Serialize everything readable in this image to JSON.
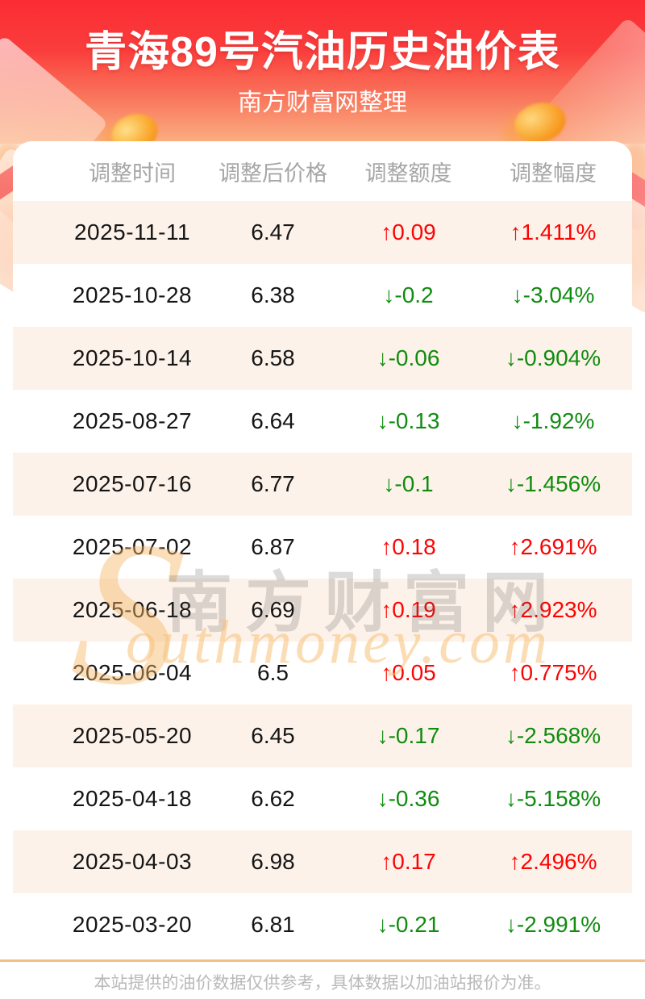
{
  "page": {
    "title": "青海89号汽油历史油价表",
    "subtitle": "南方财富网整理",
    "footer_note": "本站提供的油价数据仅供参考，具体数据以加油站报价为准。"
  },
  "watermark": {
    "initial": "S",
    "cn": "南方财富网",
    "en": "outhmoney.com"
  },
  "colors": {
    "up": "#fb0404",
    "down": "#108c10",
    "header_text": "#a6a6a6",
    "row_alt_bg": "#fdf2e9",
    "hero_red_top": "#fb2c33",
    "hero_red_bottom": "#fbb083",
    "footer_rule": "#f3bf82"
  },
  "chart_data": {
    "type": "table",
    "title": "青海89号汽油历史油价表",
    "columns": [
      "调整时间",
      "调整后价格",
      "调整额度",
      "调整幅度"
    ],
    "rows": [
      {
        "date": "2025-11-11",
        "price": "6.47",
        "change": "↑0.09",
        "pct": "↑1.411%",
        "dir": "up"
      },
      {
        "date": "2025-10-28",
        "price": "6.38",
        "change": "↓-0.2",
        "pct": "↓-3.04%",
        "dir": "down"
      },
      {
        "date": "2025-10-14",
        "price": "6.58",
        "change": "↓-0.06",
        "pct": "↓-0.904%",
        "dir": "down"
      },
      {
        "date": "2025-08-27",
        "price": "6.64",
        "change": "↓-0.13",
        "pct": "↓-1.92%",
        "dir": "down"
      },
      {
        "date": "2025-07-16",
        "price": "6.77",
        "change": "↓-0.1",
        "pct": "↓-1.456%",
        "dir": "down"
      },
      {
        "date": "2025-07-02",
        "price": "6.87",
        "change": "↑0.18",
        "pct": "↑2.691%",
        "dir": "up"
      },
      {
        "date": "2025-06-18",
        "price": "6.69",
        "change": "↑0.19",
        "pct": "↑2.923%",
        "dir": "up"
      },
      {
        "date": "2025-06-04",
        "price": "6.5",
        "change": "↑0.05",
        "pct": "↑0.775%",
        "dir": "up"
      },
      {
        "date": "2025-05-20",
        "price": "6.45",
        "change": "↓-0.17",
        "pct": "↓-2.568%",
        "dir": "down"
      },
      {
        "date": "2025-04-18",
        "price": "6.62",
        "change": "↓-0.36",
        "pct": "↓-5.158%",
        "dir": "down"
      },
      {
        "date": "2025-04-03",
        "price": "6.98",
        "change": "↑0.17",
        "pct": "↑2.496%",
        "dir": "up"
      },
      {
        "date": "2025-03-20",
        "price": "6.81",
        "change": "↓-0.21",
        "pct": "↓-2.991%",
        "dir": "down"
      }
    ]
  }
}
